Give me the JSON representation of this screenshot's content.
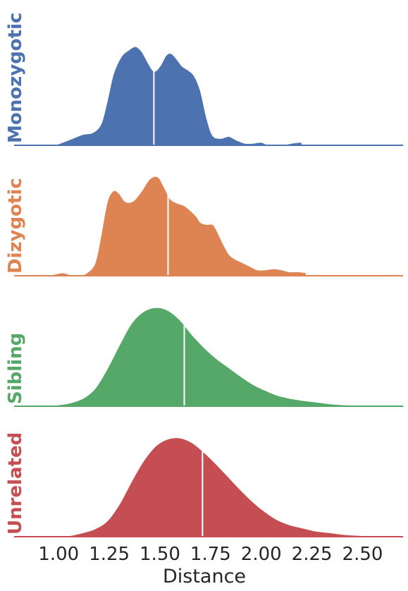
{
  "chart_data": {
    "type": "area",
    "subtype": "ridgeline-kde",
    "title": "",
    "xlabel": "Distance",
    "ylabel": "",
    "xlim": [
      0.78,
      2.7
    ],
    "xticks": [
      1.0,
      1.25,
      1.5,
      1.75,
      2.0,
      2.25,
      2.5
    ],
    "xtick_labels": [
      "1.00",
      "1.25",
      "1.50",
      "1.75",
      "2.00",
      "2.25",
      "2.50"
    ],
    "grid": false,
    "legend": "none",
    "series": [
      {
        "name": "Monozygotic",
        "color": "#4c72b0",
        "median": 1.47,
        "density": [
          [
            0.98,
            0.0
          ],
          [
            1.02,
            0.03
          ],
          [
            1.07,
            0.07
          ],
          [
            1.12,
            0.11
          ],
          [
            1.17,
            0.13
          ],
          [
            1.21,
            0.22
          ],
          [
            1.24,
            0.45
          ],
          [
            1.27,
            0.72
          ],
          [
            1.31,
            0.9
          ],
          [
            1.35,
            0.97
          ],
          [
            1.38,
            1.0
          ],
          [
            1.41,
            0.95
          ],
          [
            1.44,
            0.84
          ],
          [
            1.47,
            0.75
          ],
          [
            1.5,
            0.8
          ],
          [
            1.53,
            0.91
          ],
          [
            1.555,
            0.93
          ],
          [
            1.58,
            0.88
          ],
          [
            1.61,
            0.8
          ],
          [
            1.64,
            0.76
          ],
          [
            1.67,
            0.7
          ],
          [
            1.7,
            0.55
          ],
          [
            1.73,
            0.28
          ],
          [
            1.76,
            0.1
          ],
          [
            1.8,
            0.07
          ],
          [
            1.84,
            0.09
          ],
          [
            1.88,
            0.05
          ],
          [
            1.92,
            0.02
          ],
          [
            1.96,
            0.02
          ],
          [
            2.0,
            0.03
          ],
          [
            2.04,
            0.0
          ],
          [
            2.1,
            0.0
          ],
          [
            2.15,
            0.02
          ],
          [
            2.2,
            0.03
          ],
          [
            2.25,
            0.0
          ],
          [
            2.7,
            0.0
          ]
        ]
      },
      {
        "name": "Dizygotic",
        "color": "#dd8452",
        "median": 1.54,
        "density": [
          [
            0.95,
            0.0
          ],
          [
            0.99,
            0.02
          ],
          [
            1.02,
            0.03
          ],
          [
            1.06,
            0.01
          ],
          [
            1.1,
            0.0
          ],
          [
            1.14,
            0.03
          ],
          [
            1.18,
            0.13
          ],
          [
            1.21,
            0.42
          ],
          [
            1.24,
            0.75
          ],
          [
            1.27,
            0.86
          ],
          [
            1.3,
            0.83
          ],
          [
            1.33,
            0.75
          ],
          [
            1.37,
            0.76
          ],
          [
            1.41,
            0.86
          ],
          [
            1.45,
            0.98
          ],
          [
            1.49,
            1.0
          ],
          [
            1.52,
            0.9
          ],
          [
            1.55,
            0.78
          ],
          [
            1.58,
            0.74
          ],
          [
            1.62,
            0.71
          ],
          [
            1.65,
            0.66
          ],
          [
            1.68,
            0.6
          ],
          [
            1.7,
            0.54
          ],
          [
            1.73,
            0.52
          ],
          [
            1.76,
            0.52
          ],
          [
            1.78,
            0.46
          ],
          [
            1.81,
            0.33
          ],
          [
            1.84,
            0.22
          ],
          [
            1.87,
            0.17
          ],
          [
            1.9,
            0.14
          ],
          [
            1.94,
            0.1
          ],
          [
            1.98,
            0.06
          ],
          [
            2.02,
            0.06
          ],
          [
            2.06,
            0.07
          ],
          [
            2.1,
            0.06
          ],
          [
            2.14,
            0.04
          ],
          [
            2.18,
            0.04
          ],
          [
            2.22,
            0.03
          ],
          [
            2.27,
            0.0
          ],
          [
            2.7,
            0.0
          ]
        ]
      },
      {
        "name": "Sibling",
        "color": "#55a868",
        "median": 1.62,
        "density": [
          [
            0.9,
            0.0
          ],
          [
            0.98,
            0.01
          ],
          [
            1.05,
            0.03
          ],
          [
            1.12,
            0.08
          ],
          [
            1.18,
            0.18
          ],
          [
            1.24,
            0.38
          ],
          [
            1.3,
            0.62
          ],
          [
            1.36,
            0.84
          ],
          [
            1.42,
            0.96
          ],
          [
            1.48,
            1.0
          ],
          [
            1.54,
            0.97
          ],
          [
            1.6,
            0.87
          ],
          [
            1.66,
            0.72
          ],
          [
            1.72,
            0.59
          ],
          [
            1.78,
            0.48
          ],
          [
            1.84,
            0.39
          ],
          [
            1.9,
            0.3
          ],
          [
            1.96,
            0.22
          ],
          [
            2.02,
            0.16
          ],
          [
            2.08,
            0.11
          ],
          [
            2.14,
            0.08
          ],
          [
            2.2,
            0.06
          ],
          [
            2.28,
            0.04
          ],
          [
            2.36,
            0.02
          ],
          [
            2.45,
            0.01
          ],
          [
            2.55,
            0.005
          ],
          [
            2.7,
            0.0
          ]
        ]
      },
      {
        "name": "Unrelated",
        "color": "#c44e52",
        "median": 1.71,
        "density": [
          [
            0.95,
            0.0
          ],
          [
            1.05,
            0.01
          ],
          [
            1.12,
            0.04
          ],
          [
            1.18,
            0.08
          ],
          [
            1.24,
            0.16
          ],
          [
            1.3,
            0.33
          ],
          [
            1.36,
            0.56
          ],
          [
            1.42,
            0.77
          ],
          [
            1.48,
            0.92
          ],
          [
            1.54,
            0.99
          ],
          [
            1.6,
            1.0
          ],
          [
            1.66,
            0.95
          ],
          [
            1.72,
            0.85
          ],
          [
            1.78,
            0.73
          ],
          [
            1.84,
            0.6
          ],
          [
            1.9,
            0.47
          ],
          [
            1.96,
            0.35
          ],
          [
            2.02,
            0.25
          ],
          [
            2.08,
            0.17
          ],
          [
            2.14,
            0.12
          ],
          [
            2.2,
            0.09
          ],
          [
            2.26,
            0.06
          ],
          [
            2.34,
            0.04
          ],
          [
            2.42,
            0.02
          ],
          [
            2.52,
            0.01
          ],
          [
            2.62,
            0.005
          ],
          [
            2.7,
            0.0
          ]
        ]
      }
    ]
  }
}
